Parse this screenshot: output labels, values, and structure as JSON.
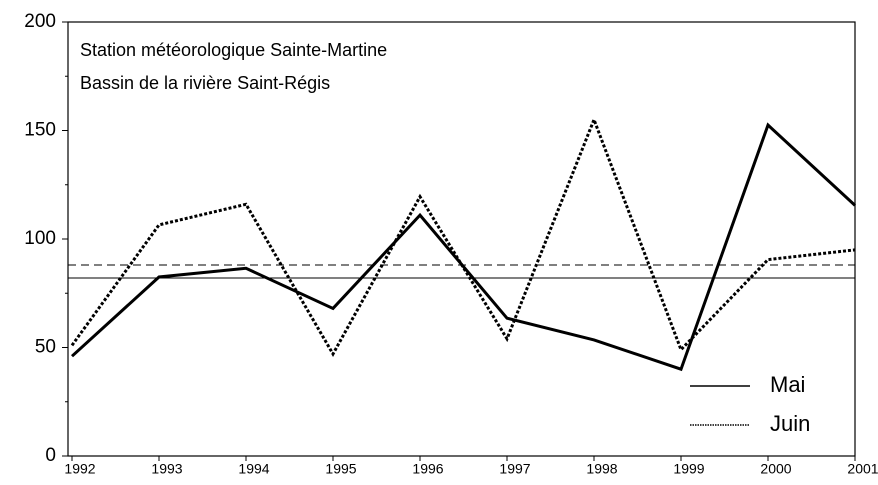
{
  "chart_data": {
    "type": "line",
    "title": "Station météorologique Sainte-Martine",
    "subtitle": "Bassin de la rivière Saint-Régis",
    "x": [
      1992,
      1993,
      1994,
      1995,
      1996,
      1997,
      1998,
      1999,
      2000,
      2001
    ],
    "xlim": [
      1992,
      2001
    ],
    "xticks": [
      1992,
      1993,
      1994,
      1995,
      1996,
      1997,
      1998,
      1999,
      2000,
      2001
    ],
    "ylim": [
      0,
      200
    ],
    "yticks": [
      0,
      50,
      100,
      150,
      200
    ],
    "yminorticks": [
      25,
      75,
      125,
      175
    ],
    "legend": "lower right",
    "series": [
      {
        "name": "Mai",
        "color": "#000000",
        "style": "solid",
        "mean": 82,
        "values": [
          46,
          82.5,
          86.5,
          68,
          111,
          63.5,
          53.5,
          40,
          152.5,
          115.5
        ]
      },
      {
        "name": "Juin",
        "color": "#000000",
        "style": "dotted",
        "mean": 88,
        "values": [
          51,
          106.5,
          116,
          47,
          119.5,
          54,
          155,
          49,
          90.5,
          95
        ]
      }
    ]
  }
}
